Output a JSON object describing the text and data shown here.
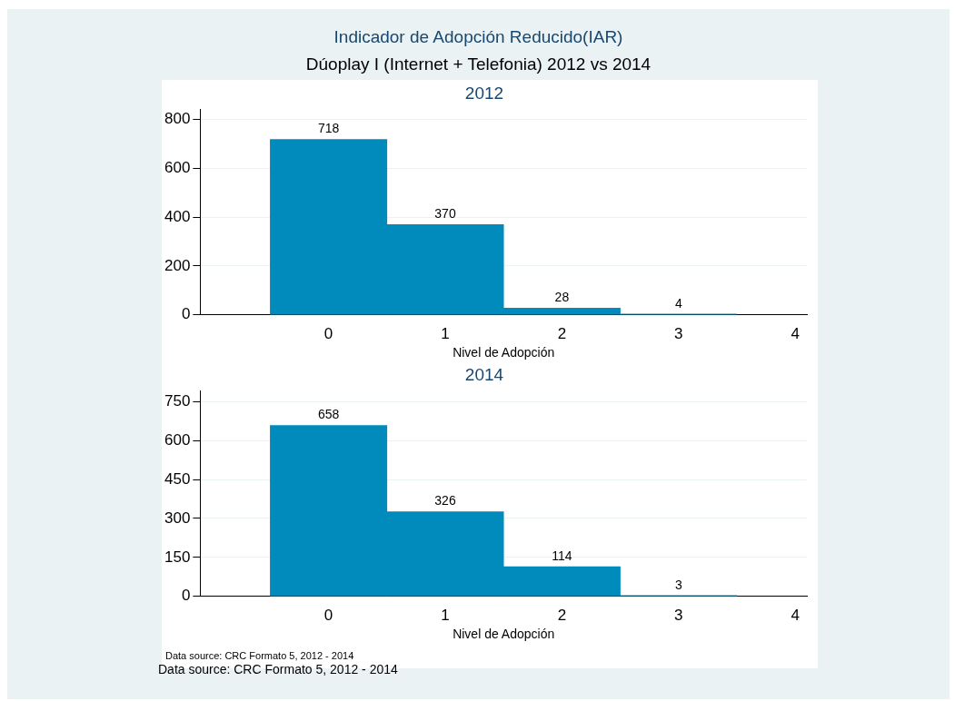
{
  "chart_data": [
    {
      "type": "histogram",
      "title": "2012",
      "annotations": [
        "Indicador de Adopción Reducido(IAR)",
        "Dúoplay I (Internet + Telefonia) 2012 vs 2014"
      ],
      "xlabel": "Nivel de Adopción",
      "bins": [
        -0.5,
        0.5,
        1.5,
        2.5,
        3.5
      ],
      "values": [
        718,
        370,
        28,
        4
      ],
      "color": "#008bbc",
      "data_labels": true,
      "xlim": [
        -1.1,
        4.1
      ],
      "xticks": [
        0,
        1,
        2,
        3,
        4
      ],
      "ylim": [
        0,
        840
      ],
      "yticks": [
        0,
        200,
        400,
        600,
        800
      ],
      "grid": "y",
      "legend": false
    },
    {
      "type": "histogram",
      "title": "2014",
      "annotations": [
        "Data source: CRC Formato 5, 2012 - 2014",
        "Data source: CRC Formato 5, 2012 - 2014"
      ],
      "xlabel": "Nivel de Adopción",
      "bins": [
        -0.5,
        0.5,
        1.5,
        2.5,
        3.5
      ],
      "values": [
        658,
        326,
        114,
        3
      ],
      "color": "#008bbc",
      "data_labels": true,
      "xlim": [
        -1.1,
        4.1
      ],
      "xticks": [
        0,
        1,
        2,
        3,
        4
      ],
      "ylim": [
        0,
        790
      ],
      "yticks": [
        0,
        150,
        300,
        450,
        600,
        750
      ],
      "grid": "y",
      "legend": false
    }
  ]
}
